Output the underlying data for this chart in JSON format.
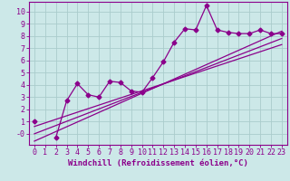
{
  "x_data": [
    0,
    1,
    2,
    3,
    4,
    5,
    6,
    7,
    8,
    9,
    10,
    11,
    12,
    13,
    14,
    15,
    16,
    17,
    18,
    19,
    20,
    21,
    22,
    23
  ],
  "main_line": [
    1.0,
    null,
    -0.3,
    2.7,
    4.1,
    3.2,
    3.0,
    4.3,
    4.2,
    3.5,
    3.4,
    4.6,
    5.9,
    7.5,
    8.6,
    8.5,
    10.5,
    8.5,
    8.3,
    8.2,
    8.2,
    8.5,
    8.2,
    8.2
  ],
  "reg_line1_x": [
    0,
    23
  ],
  "reg_line1_y": [
    0.0,
    7.8
  ],
  "reg_line2_x": [
    0,
    23
  ],
  "reg_line2_y": [
    0.6,
    7.3
  ],
  "reg_line3_x": [
    0,
    23
  ],
  "reg_line3_y": [
    -0.6,
    8.4
  ],
  "line_color": "#8b008b",
  "bg_color": "#cce8e8",
  "grid_color": "#aacccc",
  "xlabel": "Windchill (Refroidissement éolien,°C)",
  "ytick_vals": [
    0,
    1,
    2,
    3,
    4,
    5,
    6,
    7,
    8,
    9,
    10
  ],
  "ytick_labels": [
    "-0",
    "1",
    "2",
    "3",
    "4",
    "5",
    "6",
    "7",
    "8",
    "9",
    "10"
  ],
  "ylim": [
    -0.9,
    10.8
  ],
  "xlim": [
    -0.5,
    23.5
  ],
  "marker": "D",
  "markersize": 2.5,
  "linewidth": 0.9,
  "xlabel_fontsize": 6.5,
  "tick_fontsize": 6.0
}
